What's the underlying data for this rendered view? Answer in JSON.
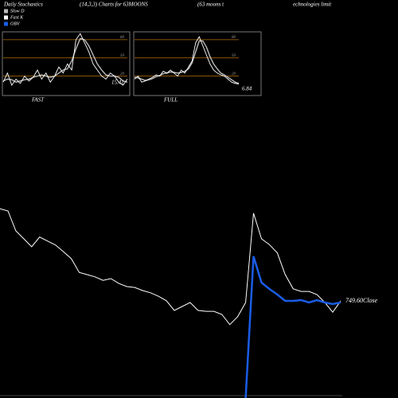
{
  "header": {
    "title": "Daily Stochastics",
    "subtitle": "(14,3,3) Charts for 63MOONS",
    "company": [
      "(63 moons t",
      "echnologies limit"
    ]
  },
  "chart_data": [
    {
      "type": "line",
      "title": "FAST",
      "annotation": "15.41",
      "ylim": [
        -12,
        93
      ],
      "yticks": [
        20,
        50,
        80
      ],
      "grid": true,
      "grid_color": "#b8720a",
      "series": [
        {
          "name": "Slow D",
          "color": "#bbbbbb",
          "values": [
            12,
            15,
            14,
            10,
            12,
            14,
            15,
            18,
            20,
            22,
            20,
            18,
            20,
            25,
            30,
            32,
            45,
            65,
            82,
            80,
            70,
            55,
            40,
            30,
            22,
            20,
            20,
            18,
            12,
            10
          ]
        },
        {
          "name": "Fast K",
          "color": "#ffffff",
          "values": [
            10,
            25,
            5,
            15,
            8,
            20,
            12,
            18,
            30,
            15,
            25,
            10,
            20,
            35,
            25,
            40,
            30,
            80,
            90,
            75,
            60,
            40,
            30,
            20,
            15,
            25,
            20,
            10,
            5,
            15
          ]
        }
      ]
    },
    {
      "type": "line",
      "title": "FULL",
      "annotation": "6.84",
      "ylim": [
        -12,
        93
      ],
      "yticks": [
        20,
        50,
        80
      ],
      "grid": true,
      "grid_color": "#b8720a",
      "series": [
        {
          "color": "#bbbbbb",
          "values": [
            18,
            17,
            15,
            13,
            14,
            16,
            19,
            21,
            24,
            25,
            27,
            26,
            25,
            26,
            28,
            32,
            42,
            60,
            78,
            78,
            68,
            52,
            40,
            32,
            25,
            22,
            18,
            14,
            10,
            8
          ]
        },
        {
          "color": "#ffffff",
          "values": [
            15,
            20,
            10,
            12,
            15,
            18,
            22,
            20,
            28,
            25,
            30,
            25,
            20,
            30,
            25,
            35,
            45,
            75,
            85,
            70,
            55,
            40,
            30,
            25,
            22,
            20,
            15,
            10,
            8,
            7
          ]
        }
      ]
    },
    {
      "type": "line",
      "annotation": "749.60Close",
      "ylim": [
        530,
        980
      ],
      "y2lim": [
        0,
        2500
      ],
      "series": [
        {
          "name": "Close",
          "color": "#ffffff",
          "values": [
            958,
            953,
            908,
            890,
            872,
            894,
            885,
            876,
            861,
            845,
            814,
            809,
            804,
            796,
            800,
            789,
            782,
            780,
            773,
            768,
            760,
            750,
            728,
            737,
            746,
            728,
            726,
            726,
            719,
            696,
            714,
            746,
            948,
            890,
            877,
            858,
            809,
            777,
            771,
            771,
            764,
            746,
            724,
            749.6
          ]
        },
        {
          "name": "OBV",
          "color": "#1a5ce6",
          "axis": "y2",
          "values": [
            null,
            null,
            null,
            null,
            null,
            null,
            null,
            null,
            null,
            null,
            null,
            null,
            null,
            null,
            null,
            null,
            null,
            null,
            null,
            null,
            null,
            null,
            null,
            null,
            null,
            null,
            null,
            null,
            null,
            null,
            null,
            0,
            1780,
            1450,
            1370,
            1300,
            1220,
            1220,
            1230,
            1200,
            1230,
            1200,
            1180,
            1200
          ]
        }
      ]
    }
  ]
}
